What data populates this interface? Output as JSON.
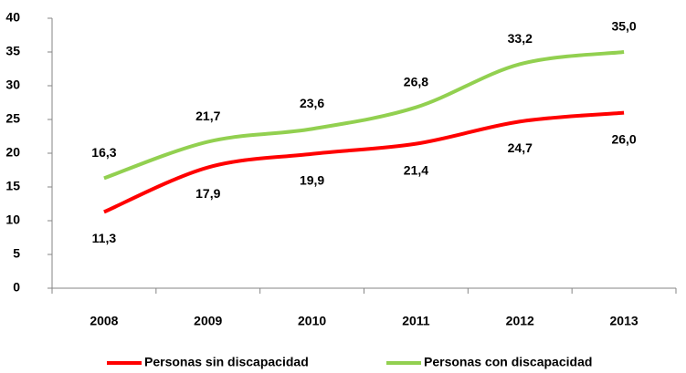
{
  "chart_data": {
    "type": "line",
    "categories": [
      "2008",
      "2009",
      "2010",
      "2011",
      "2012",
      "2013"
    ],
    "series": [
      {
        "name": "Personas sin discapacidad",
        "color": "#ff0000",
        "values": [
          11.3,
          17.9,
          19.9,
          21.4,
          24.7,
          26.0
        ],
        "value_labels": [
          "11,3",
          "17,9",
          "19,9",
          "21,4",
          "24,7",
          "26,0"
        ]
      },
      {
        "name": "Personas con discapacidad",
        "color": "#92d050",
        "values": [
          16.3,
          21.7,
          23.6,
          26.8,
          33.2,
          35.0
        ],
        "value_labels": [
          "16,3",
          "21,7",
          "23,6",
          "26,8",
          "33,2",
          "35,0"
        ]
      }
    ],
    "ylim": [
      0,
      40
    ],
    "yticks": [
      0,
      5,
      10,
      15,
      20,
      25,
      30,
      35,
      40
    ],
    "legend": "bottom"
  }
}
